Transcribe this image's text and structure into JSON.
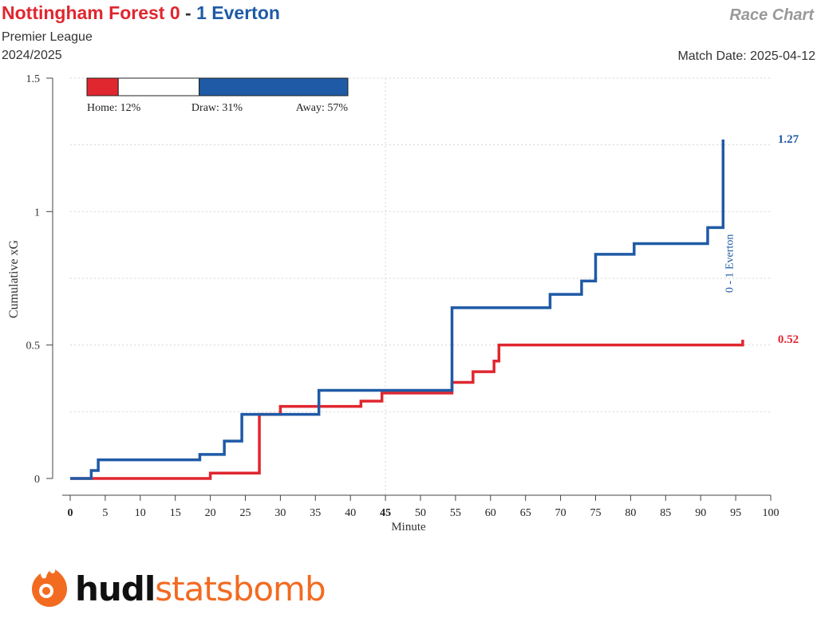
{
  "header": {
    "home_team": "Nottingham Forest",
    "home_score": "0",
    "separator": "-",
    "away_score": "1",
    "away_team": "Everton",
    "league": "Premier League",
    "season": "2024/2025",
    "chart_label": "Race Chart",
    "match_date": "Match Date: 2025-04-12"
  },
  "colors": {
    "home": "#e0262f",
    "away": "#1f5aa6",
    "brand": "#f26b21"
  },
  "brand": {
    "part1": "hudl",
    "part2": "statsbomb",
    "icon": "statsbomb-flame-icon"
  },
  "chart_data": {
    "type": "line",
    "xlabel": "Minute",
    "ylabel": "Cumulative xG",
    "xlim": [
      0,
      100
    ],
    "ylim": [
      0,
      1.5
    ],
    "x_ticks": [
      0,
      5,
      10,
      15,
      20,
      25,
      30,
      35,
      40,
      45,
      50,
      55,
      60,
      65,
      70,
      75,
      80,
      85,
      90,
      95,
      100
    ],
    "x_tick_labels": [
      "0",
      "5",
      "10",
      "15",
      "20",
      "25",
      "30",
      "35",
      "40",
      "45",
      "50",
      "55",
      "60",
      "65",
      "70",
      "75",
      "80",
      "85",
      "90",
      "95",
      "100"
    ],
    "y_ticks": [
      0,
      0.5,
      1,
      1.5
    ],
    "y_tick_labels": [
      "0",
      "0.5",
      "1",
      "1.5"
    ],
    "series": [
      {
        "team": "home",
        "color": "#e0262f",
        "final_label": "0.52",
        "x": [
          0,
          3,
          20,
          27,
          30,
          41.5,
          44.5,
          54.5,
          57.5,
          60.5,
          61.2,
          96
        ],
        "y": [
          0,
          0,
          0.02,
          0.24,
          0.27,
          0.29,
          0.32,
          0.36,
          0.4,
          0.44,
          0.5,
          0.52
        ]
      },
      {
        "team": "away",
        "color": "#1f5aa6",
        "final_label": "1.27",
        "goal_annotation": "0 - 1 Everton",
        "x": [
          0,
          3,
          4,
          18.5,
          22,
          24.5,
          35.5,
          54.5,
          68.5,
          73,
          75,
          80.5,
          91,
          93.2
        ],
        "y": [
          0,
          0.03,
          0.07,
          0.09,
          0.14,
          0.24,
          0.33,
          0.64,
          0.69,
          0.74,
          0.84,
          0.88,
          0.94,
          1.27
        ]
      }
    ],
    "win_probability": [
      {
        "label": "Home: 12%",
        "value": 12,
        "color": "#e0262f"
      },
      {
        "label": "Draw: 31%",
        "value": 31,
        "color": "#ffffff"
      },
      {
        "label": "Away: 57%",
        "value": 57,
        "color": "#1f5aa6"
      }
    ],
    "grid": true
  }
}
